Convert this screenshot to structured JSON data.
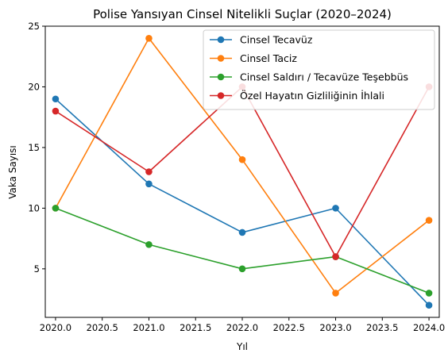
{
  "chart_data": {
    "type": "line",
    "title": "Polise Yansıyan Cinsel Nitelikli Suçlar (2020–2024)",
    "xlabel": "Yıl",
    "ylabel": "Vaka Sayısı",
    "x": [
      2020,
      2021,
      2022,
      2023,
      2024
    ],
    "xlim": [
      2019.89,
      2024.11
    ],
    "ylim": [
      1.0,
      25.0
    ],
    "x_ticks": [
      2020.0,
      2020.5,
      2021.0,
      2021.5,
      2022.0,
      2022.5,
      2023.0,
      2023.5,
      2024.0
    ],
    "x_tick_labels": [
      "2020.0",
      "2020.5",
      "2021.0",
      "2021.5",
      "2022.0",
      "2022.5",
      "2023.0",
      "2023.5",
      "2024.0"
    ],
    "y_ticks": [
      5,
      10,
      15,
      20,
      25
    ],
    "y_tick_labels": [
      "5",
      "10",
      "15",
      "20",
      "25"
    ],
    "grid": false,
    "legend_position": "top-right",
    "series": [
      {
        "name": "Cinsel Tecavüz",
        "color": "#1f77b4",
        "values": [
          19,
          12,
          8,
          10,
          2
        ]
      },
      {
        "name": "Cinsel Taciz",
        "color": "#ff7f0e",
        "values": [
          10,
          24,
          14,
          3,
          9
        ]
      },
      {
        "name": "Cinsel Saldırı / Tecavüze Teşebbüs",
        "color": "#2ca02c",
        "values": [
          10,
          7,
          5,
          6,
          3
        ]
      },
      {
        "name": "Özel Hayatın Gizliliğinin İhlali",
        "color": "#d62728",
        "values": [
          18,
          13,
          20,
          6,
          20
        ]
      }
    ]
  }
}
